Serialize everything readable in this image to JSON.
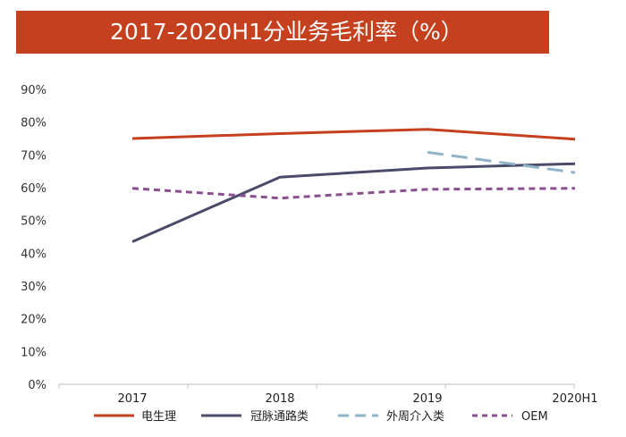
{
  "header": {
    "title": "2017-2020H1分业务毛利率（%）"
  },
  "chart_data": {
    "type": "line",
    "title": "2017-2020H1分业务毛利率（%）",
    "categories": [
      "2017",
      "2018",
      "2019",
      "2020H1"
    ],
    "ylim": [
      0,
      90
    ],
    "yticks": [
      "0%",
      "10%",
      "20%",
      "30%",
      "40%",
      "50%",
      "60%",
      "70%",
      "80%",
      "90%"
    ],
    "grid": false,
    "legend_position": "bottom",
    "series": [
      {
        "name": "电生理",
        "values": [
          75.0,
          76.5,
          77.8,
          74.8
        ],
        "color": "#c5401e",
        "style": "solid"
      },
      {
        "name": "冠脉通路类",
        "values": [
          43.5,
          63.2,
          66.0,
          67.3
        ],
        "color": "#4a4a6a",
        "style": "solid"
      },
      {
        "name": "外周介入类",
        "values": [
          null,
          null,
          70.8,
          64.6
        ],
        "color": "#8fb3c8",
        "style": "long-dash"
      },
      {
        "name": "OEM",
        "values": [
          59.8,
          56.8,
          59.5,
          59.8
        ],
        "color": "#8a4f8e",
        "style": "dash"
      }
    ]
  }
}
